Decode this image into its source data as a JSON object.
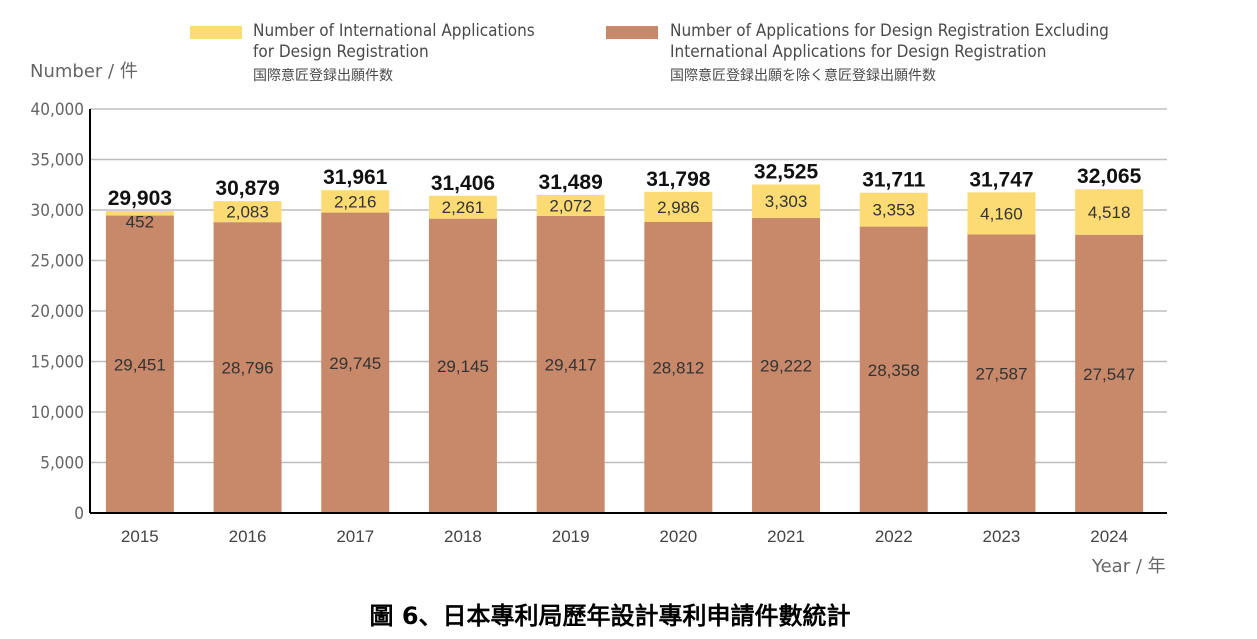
{
  "chart_data": {
    "type": "bar",
    "stacked": true,
    "title": "圖 6、日本專利局歷年設計專利申請件數統計",
    "ylabel": "Number / 件",
    "xlabel": "Year / 年",
    "ylim": [
      0,
      40000
    ],
    "yticks": [
      "0",
      "5,000",
      "10,000",
      "15,000",
      "20,000",
      "25,000",
      "30,000",
      "35,000",
      "40,000"
    ],
    "categories": [
      "2015",
      "2016",
      "2017",
      "2018",
      "2019",
      "2020",
      "2021",
      "2022",
      "2023",
      "2024"
    ],
    "series": [
      {
        "name": "Number of Applications for Design Registration Excluding International  Applications for Design Registration",
        "name_jp": "国際意匠登録出願を除く意匠登録出願件数",
        "color": "#C8896A",
        "values": [
          29451,
          28796,
          29745,
          29145,
          29417,
          28812,
          29222,
          28358,
          27587,
          27547
        ],
        "labels": [
          "29,451",
          "28,796",
          "29,745",
          "29,145",
          "29,417",
          "28,812",
          "29,222",
          "28,358",
          "27,587",
          "27,547"
        ]
      },
      {
        "name": "Number of International Applications for Design Registration",
        "name_jp": "国際意匠登録出願件数",
        "color": "#FDDB74",
        "values": [
          452,
          2083,
          2216,
          2261,
          2072,
          2986,
          3303,
          3353,
          4160,
          4518
        ],
        "labels": [
          "452",
          "2,083",
          "2,216",
          "2,261",
          "2,072",
          "2,986",
          "3,303",
          "3,353",
          "4,160",
          "4,518"
        ]
      }
    ],
    "totals": [
      "29,903",
      "30,879",
      "31,961",
      "31,406",
      "31,489",
      "31,798",
      "32,525",
      "31,711",
      "31,747",
      "32,065"
    ],
    "total_values": [
      29903,
      30879,
      31961,
      31406,
      31489,
      31798,
      32525,
      31711,
      31747,
      32065
    ],
    "grid": true,
    "legend": "top"
  },
  "legend": {
    "intl_line1": "Number of International Applications",
    "intl_line2": "for Design Registration",
    "intl_jp": "国際意匠登録出願件数",
    "dom_line1": "Number of Applications for Design Registration Excluding",
    "dom_line2": "International  Applications for Design Registration",
    "dom_jp": "国際意匠登録出願を除く意匠登録出願件数"
  }
}
